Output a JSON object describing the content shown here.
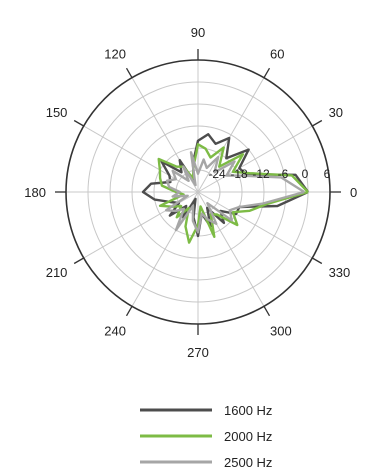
{
  "chart_data": {
    "type": "line",
    "projection": "polar",
    "angle_tick_labels": [
      "0",
      "30",
      "60",
      "90",
      "120",
      "150",
      "180",
      "210",
      "240",
      "270",
      "300",
      "330"
    ],
    "angle_ticks_deg": [
      0,
      30,
      60,
      90,
      120,
      150,
      180,
      210,
      240,
      270,
      300,
      330
    ],
    "radial_tick_labels": [
      "-24",
      "-18",
      "-12",
      "-6",
      "0",
      "6"
    ],
    "radial_ticks": [
      -24,
      -18,
      -12,
      -6,
      0,
      6
    ],
    "rlim": [
      -30,
      6
    ],
    "grid": true,
    "legend_position": "bottom",
    "angles_deg": [
      0,
      10,
      20,
      30,
      40,
      50,
      60,
      70,
      80,
      90,
      100,
      110,
      120,
      130,
      140,
      150,
      160,
      170,
      180,
      190,
      200,
      210,
      220,
      230,
      240,
      250,
      260,
      270,
      280,
      290,
      300,
      310,
      320,
      330,
      340,
      350
    ],
    "series": [
      {
        "name": "1600 Hz",
        "color": "#4d4d4d",
        "values": [
          0,
          -3,
          -16,
          -17,
          -12,
          -18,
          -13,
          -16,
          -14,
          -16,
          -22,
          -27,
          -20,
          -23,
          -17,
          -21,
          -22,
          -17,
          -15,
          -18,
          -22,
          -24,
          -20,
          -25,
          -22,
          -28,
          -23,
          -18,
          -24,
          -20,
          -25,
          -19,
          -22,
          -18,
          -18,
          -8
        ]
      },
      {
        "name": "2000 Hz",
        "color": "#7dbb45",
        "values": [
          0,
          -4,
          -15,
          -19,
          -14,
          -21,
          -16,
          -20,
          -18,
          -17,
          -23,
          -26,
          -22,
          -21,
          -16,
          -18,
          -19,
          -20,
          -24,
          -26,
          -19,
          -22,
          -24,
          -21,
          -25,
          -20,
          -16,
          -21,
          -26,
          -17,
          -23,
          -22,
          -16,
          -19,
          -15,
          -11
        ]
      },
      {
        "name": "2500 Hz",
        "color": "#a6a6a6",
        "values": [
          -1,
          -7,
          -17,
          -21,
          -17,
          -23,
          -19,
          -23,
          -21,
          -25,
          -19,
          -28,
          -22,
          -26,
          -21,
          -23,
          -21,
          -22,
          -25,
          -23,
          -27,
          -20,
          -22,
          -24,
          -18,
          -26,
          -22,
          -19,
          -24,
          -22,
          -20,
          -26,
          -18,
          -20,
          -18,
          -12
        ]
      }
    ]
  }
}
